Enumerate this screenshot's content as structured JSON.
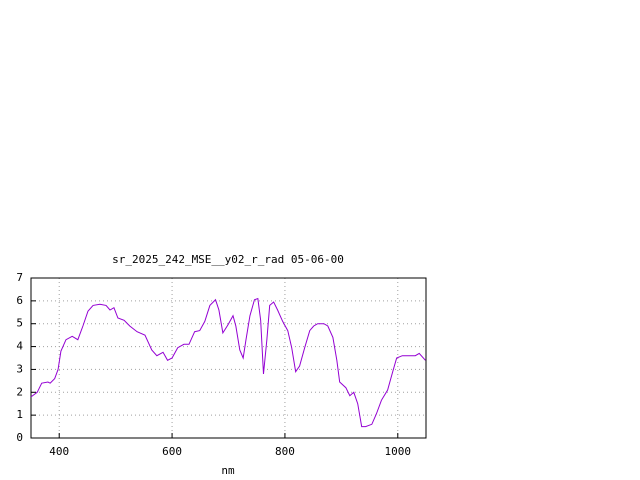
{
  "chart_data": {
    "type": "line",
    "title": "sr_2025_242_MSE__y02_r_rad 05-06-00",
    "x_label": "nm",
    "x": [
      350,
      361,
      369,
      380,
      384,
      392,
      398,
      403,
      412,
      423,
      433,
      442,
      451,
      460,
      472,
      483,
      490,
      497,
      504,
      515,
      525,
      538,
      552,
      564,
      573,
      584,
      592,
      600,
      610,
      621,
      630,
      640,
      649,
      658,
      667,
      677,
      683,
      690,
      699,
      708,
      713,
      720,
      726,
      731,
      738,
      746,
      752,
      757,
      762,
      768,
      773,
      780,
      787,
      796,
      805,
      812,
      819,
      826,
      835,
      844,
      851,
      858,
      869,
      876,
      885,
      892,
      897,
      908,
      915,
      922,
      929,
      936,
      943,
      954,
      962,
      971,
      982,
      991,
      998,
      1008,
      1021,
      1031,
      1038,
      1049
    ],
    "series": [
      {
        "name": "sr_2025_242_MSE__y02_r_rad",
        "color": "#9400d3",
        "values": [
          1.8,
          2.0,
          2.4,
          2.45,
          2.4,
          2.6,
          3.0,
          3.8,
          4.3,
          4.45,
          4.3,
          4.9,
          5.55,
          5.8,
          5.85,
          5.8,
          5.6,
          5.7,
          5.25,
          5.15,
          4.9,
          4.65,
          4.5,
          3.85,
          3.6,
          3.75,
          3.4,
          3.5,
          3.95,
          4.1,
          4.1,
          4.65,
          4.7,
          5.1,
          5.8,
          6.05,
          5.6,
          4.6,
          4.95,
          5.35,
          4.9,
          3.85,
          3.5,
          4.3,
          5.35,
          6.05,
          6.1,
          5.15,
          2.8,
          4.3,
          5.8,
          5.95,
          5.6,
          5.1,
          4.7,
          3.95,
          2.9,
          3.15,
          3.95,
          4.7,
          4.9,
          5.0,
          5.0,
          4.9,
          4.4,
          3.4,
          2.45,
          2.2,
          1.85,
          2.0,
          1.5,
          0.5,
          0.5,
          0.6,
          1.05,
          1.65,
          2.1,
          2.9,
          3.5,
          3.6,
          3.6,
          3.6,
          3.7,
          3.4
        ]
      }
    ],
    "xlim": [
      350,
      1050
    ],
    "xticks": [
      400,
      600,
      800,
      1000
    ],
    "ylim": [
      0,
      7
    ],
    "yticks": [
      0,
      1,
      2,
      3,
      4,
      5,
      6,
      7
    ],
    "grid": true
  }
}
